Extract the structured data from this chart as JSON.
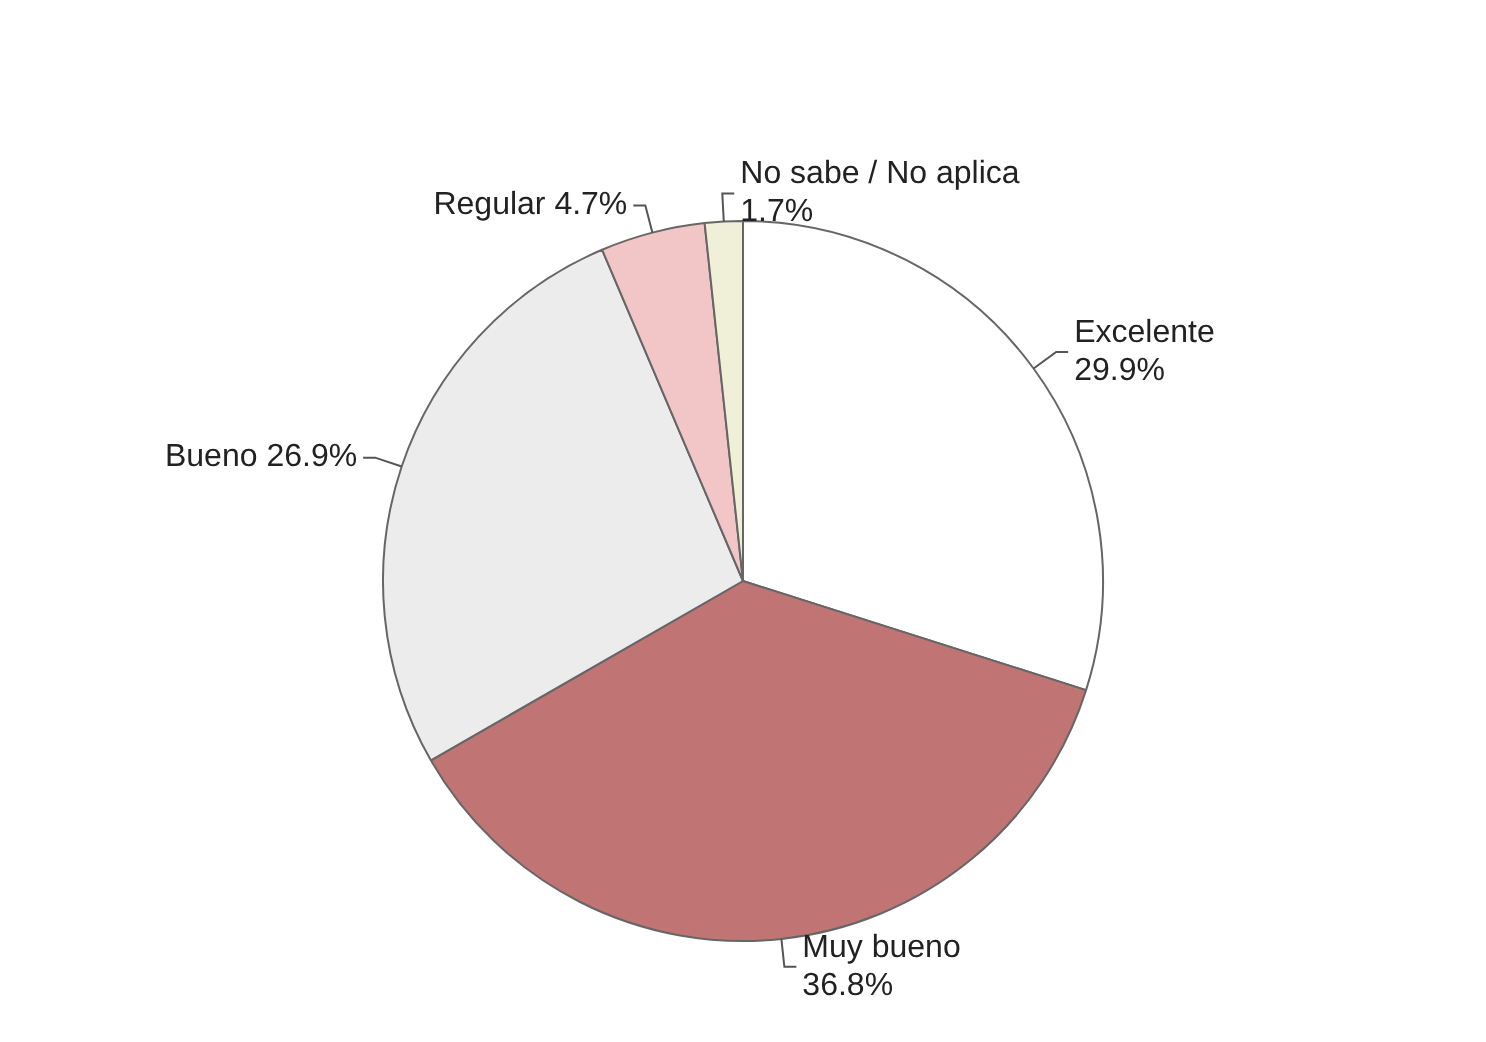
{
  "chart_data": {
    "type": "pie",
    "categories": [
      "Excelente",
      "Muy bueno",
      "Bueno",
      "Regular",
      "No sabe / No aplica"
    ],
    "values": [
      29.9,
      36.8,
      26.9,
      4.7,
      1.7
    ],
    "colors": [
      "#ffffff",
      "#c07474",
      "#ececec",
      "#f2c6c6",
      "#f0f0d8"
    ],
    "value_labels": [
      "29.9%",
      "36.8%",
      "26.9%",
      "4.7%",
      "1.7%"
    ]
  }
}
